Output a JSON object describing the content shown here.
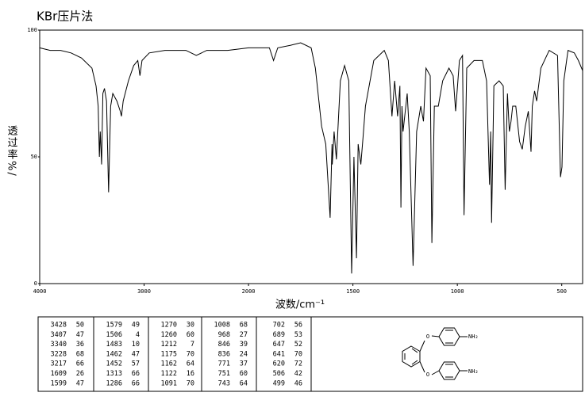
{
  "chart_data": {
    "type": "line",
    "title": "KBr压片法",
    "ylabel": "透过率%/",
    "xlabel": "波数/cm⁻¹",
    "xlim": [
      4000,
      400
    ],
    "x_break": 2000,
    "x_break_factor": 2,
    "xticks": [
      4000,
      3000,
      2000,
      1500,
      1000,
      500
    ],
    "ylim": [
      0,
      100
    ],
    "yticks": [
      0,
      50,
      100
    ],
    "color": "#000000",
    "x": [
      4000,
      3900,
      3800,
      3700,
      3600,
      3500,
      3460,
      3440,
      3428,
      3420,
      3407,
      3395,
      3380,
      3360,
      3340,
      3320,
      3300,
      3260,
      3228,
      3217,
      3200,
      3150,
      3100,
      3060,
      3040,
      3020,
      2950,
      2800,
      2600,
      2500,
      2400,
      2200,
      2000,
      1900,
      1880,
      1860,
      1800,
      1750,
      1700,
      1680,
      1650,
      1630,
      1609,
      1600,
      1599,
      1590,
      1579,
      1560,
      1540,
      1520,
      1506,
      1495,
      1483,
      1475,
      1462,
      1452,
      1440,
      1400,
      1350,
      1330,
      1313,
      1300,
      1286,
      1275,
      1270,
      1265,
      1260,
      1240,
      1230,
      1212,
      1195,
      1175,
      1162,
      1150,
      1130,
      1122,
      1110,
      1091,
      1070,
      1040,
      1020,
      1008,
      990,
      975,
      968,
      955,
      920,
      880,
      860,
      846,
      840,
      836,
      825,
      800,
      780,
      771,
      760,
      751,
      743,
      735,
      720,
      702,
      689,
      675,
      660,
      647,
      641,
      630,
      620,
      600,
      560,
      520,
      506,
      499,
      490,
      470,
      440,
      420,
      400
    ],
    "values": [
      93,
      92,
      92,
      91,
      89,
      85,
      78,
      70,
      50,
      60,
      47,
      75,
      77,
      72,
      36,
      70,
      75,
      72,
      68,
      66,
      72,
      80,
      86,
      88,
      82,
      88,
      91,
      92,
      92,
      90,
      92,
      92,
      93,
      93,
      88,
      93,
      94,
      95,
      93,
      85,
      62,
      55,
      26,
      55,
      47,
      60,
      49,
      80,
      86,
      80,
      4,
      50,
      10,
      55,
      47,
      57,
      70,
      88,
      92,
      88,
      66,
      80,
      66,
      78,
      30,
      70,
      60,
      75,
      60,
      7,
      60,
      70,
      64,
      85,
      82,
      16,
      70,
      70,
      80,
      85,
      82,
      68,
      88,
      90,
      27,
      85,
      88,
      88,
      80,
      39,
      60,
      24,
      78,
      80,
      78,
      37,
      75,
      60,
      64,
      70,
      70,
      56,
      53,
      62,
      68,
      52,
      70,
      76,
      72,
      85,
      92,
      90,
      42,
      46,
      80,
      92,
      91,
      88,
      84
    ]
  },
  "peak_table": {
    "columns": [
      [
        [
          3428,
          50
        ],
        [
          3407,
          47
        ],
        [
          3340,
          36
        ],
        [
          3228,
          68
        ],
        [
          3217,
          66
        ],
        [
          1609,
          26
        ],
        [
          1599,
          47
        ]
      ],
      [
        [
          1579,
          49
        ],
        [
          1506,
          4
        ],
        [
          1483,
          10
        ],
        [
          1462,
          47
        ],
        [
          1452,
          57
        ],
        [
          1313,
          66
        ],
        [
          1286,
          66
        ]
      ],
      [
        [
          1270,
          30
        ],
        [
          1260,
          60
        ],
        [
          1212,
          7
        ],
        [
          1175,
          70
        ],
        [
          1162,
          64
        ],
        [
          1122,
          16
        ],
        [
          1091,
          70
        ]
      ],
      [
        [
          1008,
          68
        ],
        [
          968,
          27
        ],
        [
          846,
          39
        ],
        [
          836,
          24
        ],
        [
          771,
          37
        ],
        [
          751,
          60
        ],
        [
          743,
          64
        ]
      ],
      [
        [
          702,
          56
        ],
        [
          689,
          53
        ],
        [
          647,
          52
        ],
        [
          641,
          70
        ],
        [
          620,
          72
        ],
        [
          506,
          42
        ],
        [
          499,
          46
        ]
      ]
    ]
  },
  "structure": {
    "labels": [
      "O",
      "NH₂",
      "O",
      "NH₂"
    ]
  }
}
